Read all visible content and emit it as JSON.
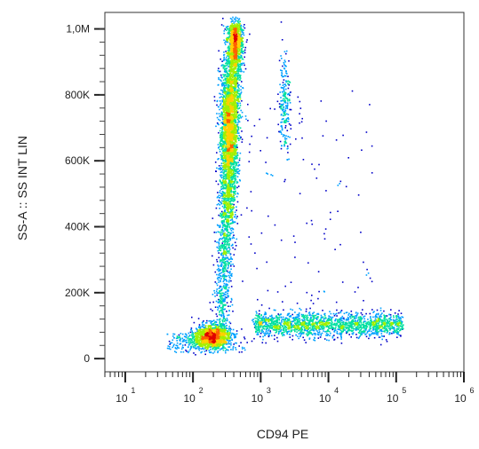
{
  "chart_data": {
    "type": "scatter",
    "title": "",
    "xlabel": "CD94 PE",
    "ylabel": "SS-A :: SS INT LIN",
    "x_scale": "log",
    "xlim": [
      5,
      1000000
    ],
    "ylim": [
      -40000,
      1050000
    ],
    "grid": false,
    "legend": "none",
    "x_ticks": [
      {
        "base": "10",
        "exp": "1",
        "value": 10
      },
      {
        "base": "10",
        "exp": "2",
        "value": 100
      },
      {
        "base": "10",
        "exp": "3",
        "value": 1000
      },
      {
        "base": "10",
        "exp": "4",
        "value": 10000
      },
      {
        "base": "10",
        "exp": "5",
        "value": 100000
      },
      {
        "base": "10",
        "exp": "6",
        "value": 1000000
      }
    ],
    "y_ticks": [
      {
        "label": "0",
        "value": 0
      },
      {
        "label": "200K",
        "value": 200000
      },
      {
        "label": "400K",
        "value": 400000
      },
      {
        "label": "600K",
        "value": 600000
      },
      {
        "label": "800K",
        "value": 800000
      },
      {
        "label": "1,0M",
        "value": 1000000
      }
    ],
    "populations": [
      {
        "name": "CD94-negative cluster",
        "x_center": 200,
        "y_center": 70000,
        "density": "high"
      },
      {
        "name": "CD94-positive cluster",
        "x_center": 350,
        "y_center": 700000,
        "density": "high"
      },
      {
        "name": "CD94-positive high-SS cluster",
        "x_center": 2200,
        "y_center": 800000,
        "density": "low"
      },
      {
        "name": "CD94-high low-SS band",
        "x_range": [
          1000,
          110000
        ],
        "y_center": 100000,
        "density": "medium"
      }
    ],
    "density_colors": [
      "#0000c8",
      "#00a0ff",
      "#00e0a0",
      "#a0f000",
      "#ffd000",
      "#ff6000",
      "#e00000"
    ]
  }
}
